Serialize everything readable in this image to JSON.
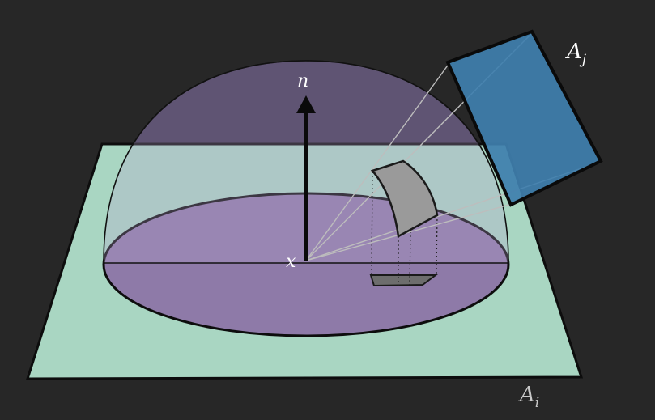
{
  "labels": {
    "normal": "n",
    "point": "x",
    "receiver_main": "A",
    "receiver_sub": "i",
    "source_main": "A",
    "source_sub": "j"
  },
  "colors": {
    "background": "#272727",
    "plane": "#a9d6c2",
    "disk": "#8e7aa8",
    "hemisphere_back": "#3e3550",
    "hemisphere_front": "#9c8fb1",
    "patch": "#3f7fae",
    "projection": "#8c8c8c"
  }
}
